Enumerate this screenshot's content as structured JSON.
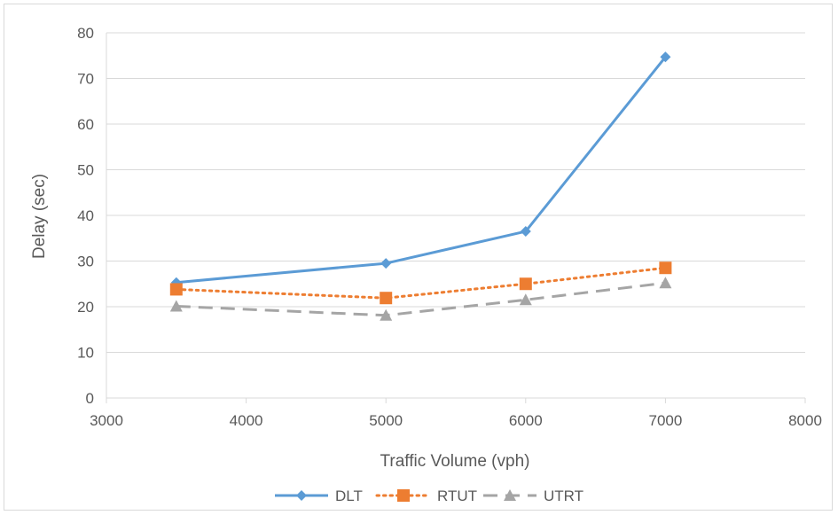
{
  "chart_data": {
    "type": "scatter",
    "title": "",
    "xlabel": "Traffic Volume (vph)",
    "ylabel": "Delay (sec)",
    "xlim": [
      3000,
      8000
    ],
    "ylim": [
      0,
      80
    ],
    "x_ticks": [
      3000,
      4000,
      5000,
      6000,
      7000,
      8000
    ],
    "y_ticks": [
      0,
      10,
      20,
      30,
      40,
      50,
      60,
      70,
      80
    ],
    "grid": "horizontal",
    "legend_position": "bottom",
    "x": [
      3500,
      5000,
      6000,
      7000
    ],
    "series": [
      {
        "name": "DLT",
        "values": [
          25.3,
          29.5,
          36.5,
          74.7
        ],
        "color": "#5b9bd5",
        "marker": "diamond",
        "line_style": "solid"
      },
      {
        "name": "RTUT",
        "values": [
          23.8,
          21.9,
          25.0,
          28.5
        ],
        "color": "#ed7d31",
        "marker": "square",
        "line_style": "dotted"
      },
      {
        "name": "UTRT",
        "values": [
          20.1,
          18.1,
          21.5,
          25.2
        ],
        "color": "#a5a5a5",
        "marker": "triangle",
        "line_style": "dashed"
      }
    ]
  }
}
